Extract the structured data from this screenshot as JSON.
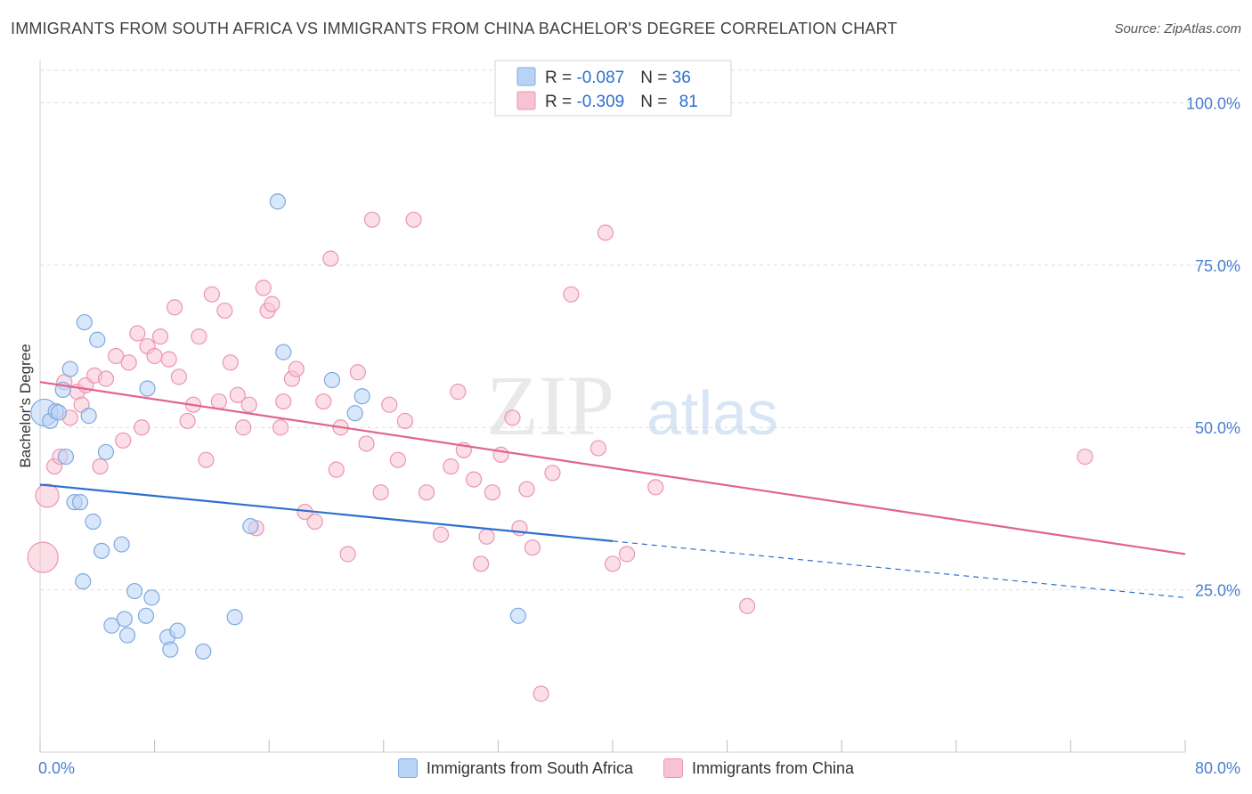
{
  "header": {
    "title": "IMMIGRANTS FROM SOUTH AFRICA VS IMMIGRANTS FROM CHINA BACHELOR'S DEGREE CORRELATION CHART",
    "source": "Source: ZipAtlas.com"
  },
  "watermark": {
    "zip": "ZIP",
    "atlas": "atlas"
  },
  "stats": [
    {
      "r_label": "R = ",
      "r": "-0.087",
      "n_label": "N = ",
      "n": "36"
    },
    {
      "r_label": "R = ",
      "r": "-0.309",
      "n_label": "N = ",
      "n": "81"
    }
  ],
  "colors": {
    "blue_fill": "#b9d3f5",
    "blue_stroke": "#7ea9e1",
    "blue_line": "#2d6fd0",
    "pink_fill": "#f9c2d2",
    "pink_stroke": "#e996b1",
    "pink_line": "#e0648f",
    "tick_label": "#4a7fd0",
    "grid": "#dddddd"
  },
  "chart_data": {
    "type": "scatter",
    "xlabel": "",
    "ylabel": "Bachelor's Degree",
    "xlim": [
      0,
      80
    ],
    "ylim": [
      0,
      105
    ],
    "x_tick_labels": [
      "0.0%",
      "80.0%"
    ],
    "y_ticks": [
      25,
      50,
      75,
      100
    ],
    "y_tick_labels": [
      "25.0%",
      "50.0%",
      "75.0%",
      "100.0%"
    ],
    "grid": true,
    "legend_position": "bottom",
    "series": [
      {
        "name": "Immigrants from South Africa",
        "points": [
          [
            0.3,
            52.3
          ],
          [
            0.7,
            51.0
          ],
          [
            1.1,
            52.5
          ],
          [
            1.3,
            52.3
          ],
          [
            1.6,
            55.8
          ],
          [
            1.8,
            45.5
          ],
          [
            2.1,
            59.0
          ],
          [
            2.4,
            38.5
          ],
          [
            2.8,
            38.5
          ],
          [
            3.0,
            26.3
          ],
          [
            3.1,
            66.2
          ],
          [
            3.4,
            51.8
          ],
          [
            3.7,
            35.5
          ],
          [
            4.0,
            63.5
          ],
          [
            4.3,
            31.0
          ],
          [
            4.6,
            46.2
          ],
          [
            5.0,
            19.5
          ],
          [
            5.7,
            32.0
          ],
          [
            5.9,
            20.5
          ],
          [
            6.1,
            18.0
          ],
          [
            6.6,
            24.8
          ],
          [
            7.4,
            21.0
          ],
          [
            7.5,
            56.0
          ],
          [
            7.8,
            23.8
          ],
          [
            8.9,
            17.7
          ],
          [
            9.1,
            15.8
          ],
          [
            9.6,
            18.7
          ],
          [
            11.4,
            15.5
          ],
          [
            13.6,
            20.8
          ],
          [
            14.7,
            34.8
          ],
          [
            16.6,
            84.8
          ],
          [
            17.0,
            61.6
          ],
          [
            20.4,
            57.3
          ],
          [
            22.0,
            52.2
          ],
          [
            22.5,
            54.8
          ],
          [
            33.4,
            21.0
          ]
        ],
        "trend": {
          "x": [
            0,
            40
          ],
          "y": [
            41.2,
            32.5
          ],
          "dashed_to": [
            80,
            23.8
          ]
        }
      },
      {
        "name": "Immigrants from China",
        "points": [
          [
            0.2,
            30.0
          ],
          [
            0.5,
            39.5
          ],
          [
            1.0,
            44.0
          ],
          [
            1.4,
            45.5
          ],
          [
            1.7,
            57.0
          ],
          [
            2.1,
            51.5
          ],
          [
            2.6,
            55.5
          ],
          [
            2.9,
            53.5
          ],
          [
            3.2,
            56.5
          ],
          [
            3.8,
            58.0
          ],
          [
            4.2,
            44.0
          ],
          [
            4.6,
            57.5
          ],
          [
            5.3,
            61.0
          ],
          [
            5.8,
            48.0
          ],
          [
            6.2,
            60.0
          ],
          [
            6.8,
            64.5
          ],
          [
            7.1,
            50.0
          ],
          [
            7.5,
            62.5
          ],
          [
            8.0,
            61.0
          ],
          [
            8.4,
            64.0
          ],
          [
            9.0,
            60.5
          ],
          [
            9.4,
            68.5
          ],
          [
            9.7,
            57.8
          ],
          [
            10.3,
            51.0
          ],
          [
            10.7,
            53.5
          ],
          [
            11.1,
            64.0
          ],
          [
            11.6,
            45.0
          ],
          [
            12.0,
            70.5
          ],
          [
            12.5,
            54.0
          ],
          [
            12.9,
            68.0
          ],
          [
            13.3,
            60.0
          ],
          [
            13.8,
            55.0
          ],
          [
            14.2,
            50.0
          ],
          [
            14.6,
            53.5
          ],
          [
            15.1,
            34.5
          ],
          [
            15.6,
            71.5
          ],
          [
            15.9,
            68.0
          ],
          [
            16.2,
            69.0
          ],
          [
            16.8,
            50.0
          ],
          [
            17.0,
            54.0
          ],
          [
            17.6,
            57.5
          ],
          [
            17.9,
            59.0
          ],
          [
            18.5,
            37.0
          ],
          [
            19.2,
            35.5
          ],
          [
            19.8,
            54.0
          ],
          [
            20.3,
            76.0
          ],
          [
            20.7,
            43.5
          ],
          [
            21.0,
            50.0
          ],
          [
            21.5,
            30.5
          ],
          [
            22.2,
            58.5
          ],
          [
            22.8,
            47.5
          ],
          [
            23.2,
            82.0
          ],
          [
            23.8,
            40.0
          ],
          [
            24.4,
            53.5
          ],
          [
            25.0,
            45.0
          ],
          [
            25.5,
            51.0
          ],
          [
            26.1,
            82.0
          ],
          [
            27.0,
            40.0
          ],
          [
            28.0,
            33.5
          ],
          [
            28.7,
            44.0
          ],
          [
            29.2,
            55.5
          ],
          [
            29.6,
            46.5
          ],
          [
            30.3,
            42.0
          ],
          [
            30.8,
            29.0
          ],
          [
            31.2,
            33.2
          ],
          [
            31.6,
            40.0
          ],
          [
            32.2,
            45.8
          ],
          [
            33.0,
            51.5
          ],
          [
            33.5,
            34.5
          ],
          [
            34.0,
            40.5
          ],
          [
            34.4,
            31.5
          ],
          [
            35.0,
            9.0
          ],
          [
            35.8,
            43.0
          ],
          [
            37.1,
            70.5
          ],
          [
            39.0,
            46.8
          ],
          [
            39.5,
            80.0
          ],
          [
            40.0,
            29.0
          ],
          [
            41.0,
            30.5
          ],
          [
            43.0,
            40.8
          ],
          [
            49.4,
            22.5
          ],
          [
            73.0,
            45.5
          ]
        ],
        "trend": {
          "x": [
            0,
            80
          ],
          "y": [
            57.0,
            30.5
          ]
        }
      }
    ]
  }
}
